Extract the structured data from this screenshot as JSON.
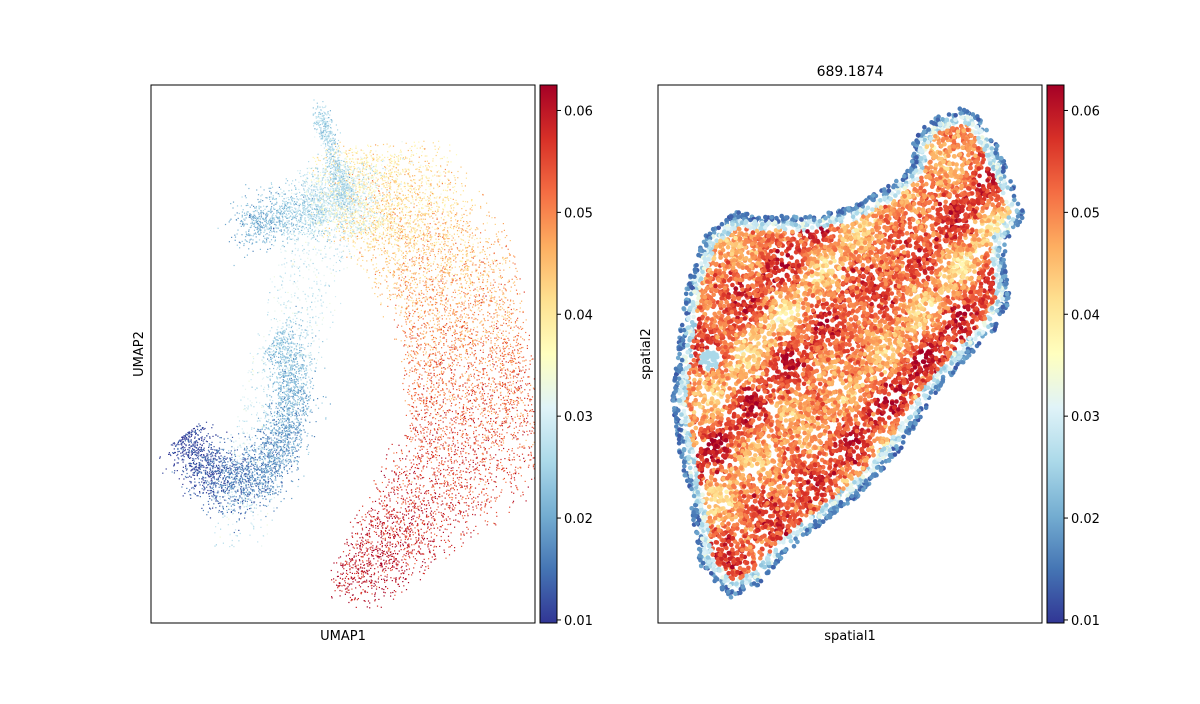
{
  "chart_data": [
    {
      "type": "scatter",
      "title": "",
      "xlabel": "UMAP1",
      "ylabel": "UMAP2",
      "colormap": "RdYlBu_r",
      "colorbar": {
        "ticks": [
          "0.01",
          "0.02",
          "0.03",
          "0.04",
          "0.05",
          "0.06"
        ],
        "range": [
          0.0097,
          0.0625
        ]
      },
      "axes_ticks": "hidden",
      "embedding": "crescent",
      "points": 14000
    },
    {
      "type": "scatter",
      "title": "689.1874",
      "xlabel": "spatial1",
      "ylabel": "spatial2",
      "colormap": "RdYlBu_r",
      "colorbar": {
        "ticks": [
          "0.01",
          "0.02",
          "0.03",
          "0.04",
          "0.05",
          "0.06"
        ],
        "range": [
          0.0097,
          0.0625
        ]
      },
      "axes_ticks": "hidden",
      "embedding": "tissue",
      "points": 9000
    }
  ],
  "colors": {
    "low": "#313695",
    "mid": "#ffffbf",
    "high": "#a50026"
  }
}
